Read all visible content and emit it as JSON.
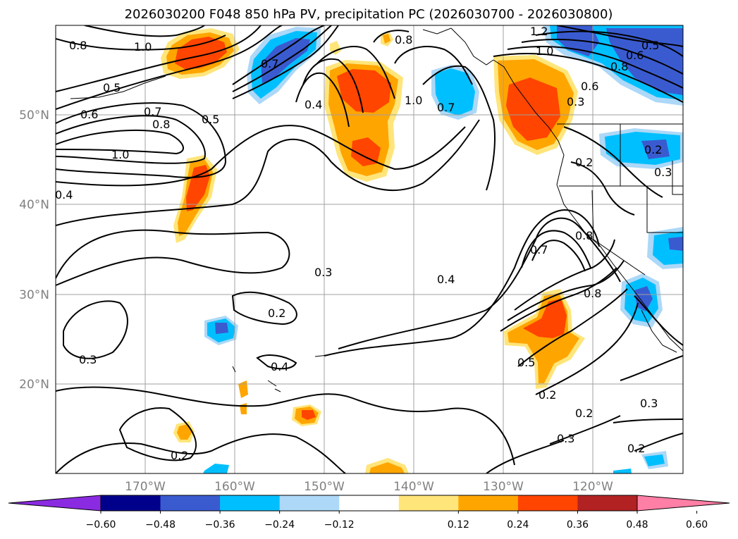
{
  "title": "2026030200 F048 850 hPa PV, precipitation PC (2026030700 - 2026030800)",
  "map": {
    "lat_labels": [
      "50°N",
      "40°N",
      "30°N",
      "20°N"
    ],
    "lon_labels": [
      "170°W",
      "160°W",
      "150°W",
      "140°W",
      "130°W",
      "120°W"
    ],
    "contour_labels": [
      "0.8",
      "1.0",
      "0.5",
      "0.6",
      "0.7",
      "0.8",
      "1.0",
      "0.4",
      "0.5",
      "0.7",
      "0.4",
      "0.8",
      "1.0",
      "0.7",
      "1.2",
      "1.0",
      "0.8",
      "0.6",
      "0.5",
      "0.6",
      "0.3",
      "0.3",
      "0.2",
      "0.2",
      "0.7",
      "0.8",
      "0.8",
      "0.3",
      "0.2",
      "0.4",
      "0.3",
      "0.4",
      "0.5",
      "0.2",
      "0.2",
      "0.3",
      "0.2",
      "0.3",
      "0.2"
    ]
  },
  "colorbar": {
    "ticks": [
      "−0.60",
      "−0.48",
      "−0.36",
      "−0.24",
      "−0.12",
      "0.12",
      "0.24",
      "0.36",
      "0.48",
      "0.60"
    ],
    "colors": [
      "#8a2be2",
      "#00008b",
      "#3a5bd0",
      "#00bfff",
      "#add8f7",
      "#ffffff",
      "#ffe57a",
      "#ffa500",
      "#ff4500",
      "#b22222",
      "#ff7fa6"
    ]
  }
}
